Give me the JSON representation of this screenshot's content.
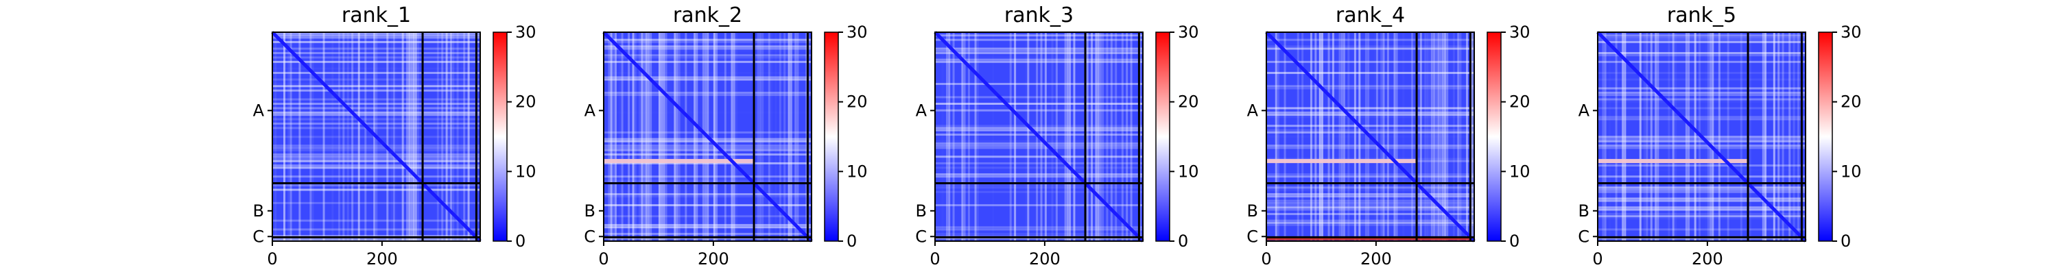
{
  "colors": {
    "low": "#0000ff",
    "mid": "#ffffff",
    "high": "#ff0000",
    "divider": "#000000"
  },
  "chart_data": [
    {
      "type": "heatmap",
      "title": "rank_1",
      "xlim": [
        0,
        379
      ],
      "x_ticks": [
        0,
        200
      ],
      "y_tick_labels": [
        "A",
        "B",
        "C"
      ],
      "chain_boundaries": [
        274
      ],
      "colorbar": {
        "min": 0,
        "max": 30,
        "ticks": [
          0,
          10,
          20,
          30
        ]
      },
      "grid": false,
      "notable_regions": []
    },
    {
      "type": "heatmap",
      "title": "rank_2",
      "xlim": [
        0,
        379
      ],
      "x_ticks": [
        0,
        200
      ],
      "y_tick_labels": [
        "A",
        "B",
        "C"
      ],
      "chain_boundaries": [
        274
      ],
      "colorbar": {
        "min": 0,
        "max": 30,
        "ticks": [
          0,
          10,
          20,
          30
        ]
      },
      "grid": false,
      "notable_regions": [
        "row_band_near_A_end_light_red"
      ]
    },
    {
      "type": "heatmap",
      "title": "rank_3",
      "xlim": [
        0,
        379
      ],
      "x_ticks": [
        0,
        200
      ],
      "y_tick_labels": [
        "A",
        "B",
        "C"
      ],
      "chain_boundaries": [
        274
      ],
      "colorbar": {
        "min": 0,
        "max": 30,
        "ticks": [
          0,
          10,
          20,
          30
        ]
      },
      "grid": false,
      "notable_regions": []
    },
    {
      "type": "heatmap",
      "title": "rank_4",
      "xlim": [
        0,
        379
      ],
      "x_ticks": [
        0,
        200
      ],
      "y_tick_labels": [
        "A",
        "B",
        "C"
      ],
      "chain_boundaries": [
        274
      ],
      "colorbar": {
        "min": 0,
        "max": 30,
        "ticks": [
          0,
          10,
          20,
          30
        ]
      },
      "grid": false,
      "notable_regions": [
        "row_band_near_A_end_light_red",
        "chain_C_rows_red"
      ]
    },
    {
      "type": "heatmap",
      "title": "rank_5",
      "xlim": [
        0,
        379
      ],
      "x_ticks": [
        0,
        200
      ],
      "y_tick_labels": [
        "A",
        "B",
        "C"
      ],
      "chain_boundaries": [
        274
      ],
      "colorbar": {
        "min": 0,
        "max": 30,
        "ticks": [
          0,
          10,
          20,
          30
        ]
      },
      "grid": false,
      "notable_regions": [
        "row_band_near_A_end_light_red"
      ]
    }
  ]
}
